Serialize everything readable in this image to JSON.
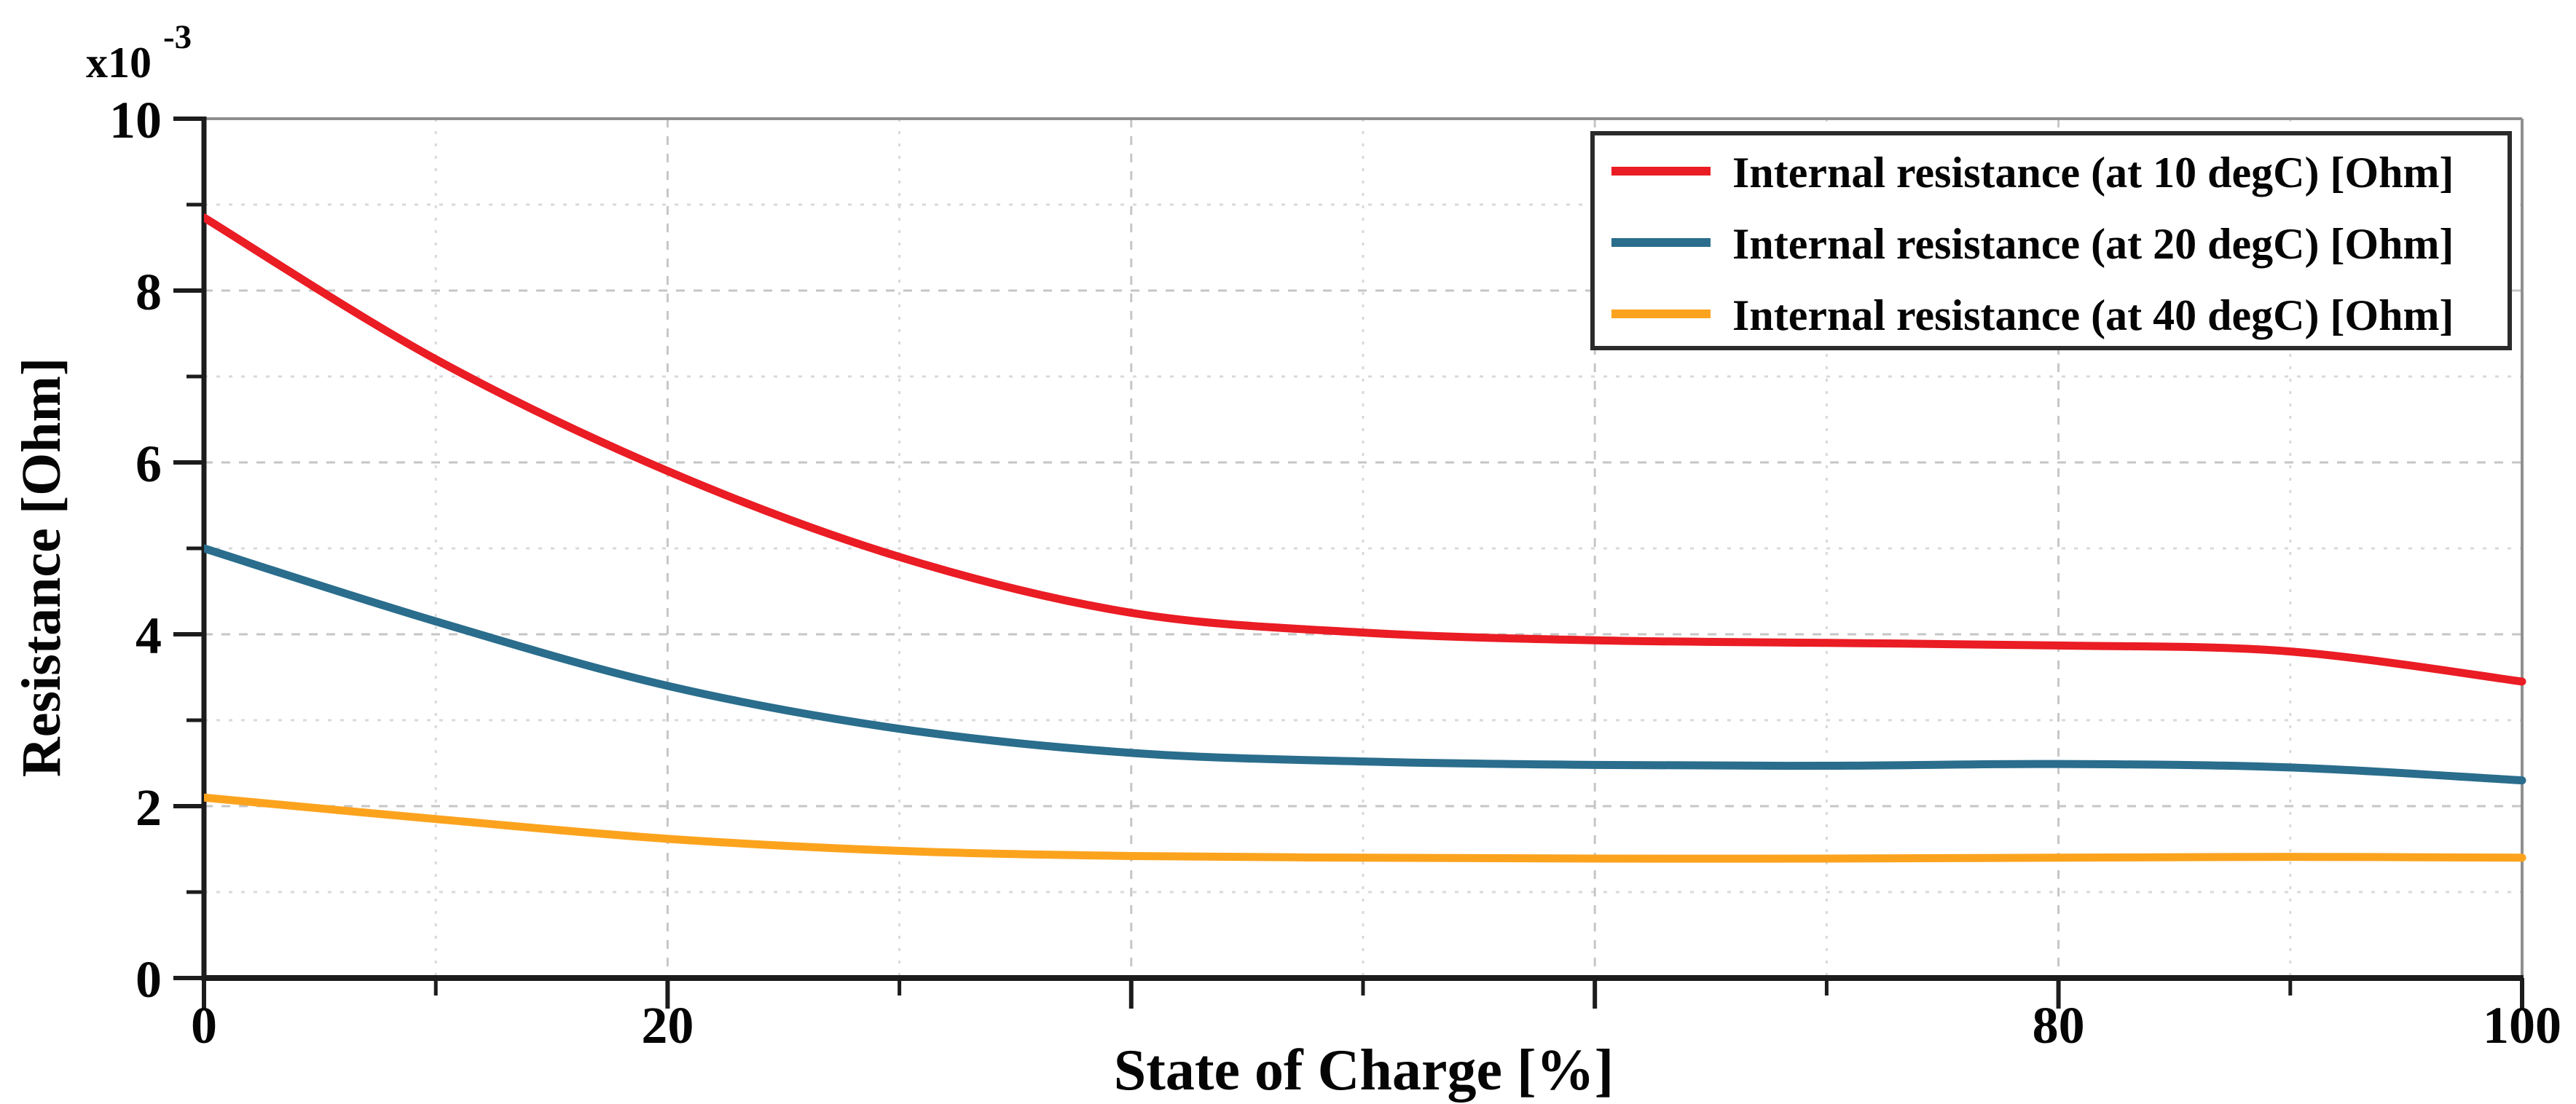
{
  "figure": {
    "y_multiplier_base": "x10",
    "y_multiplier_exponent": "-3"
  },
  "chart_data": {
    "type": "line",
    "title": "",
    "xlabel": "State of Charge [%]",
    "ylabel": "Resistance [Ohm]",
    "y_scale_note": "x10^-3",
    "xlim": [
      0,
      100
    ],
    "ylim": [
      0,
      10
    ],
    "grid": true,
    "legend_position": "top-right",
    "x_major_ticks": [
      0,
      20,
      40,
      60,
      80,
      100
    ],
    "x_minor_ticks": [
      10,
      30,
      50,
      70,
      90
    ],
    "x_tick_labels": [
      {
        "value": 0,
        "label": "0"
      },
      {
        "value": 20,
        "label": "20"
      },
      {
        "value": 80,
        "label": "80"
      },
      {
        "value": 100,
        "label": "100"
      }
    ],
    "y_major_ticks": [
      0,
      2,
      4,
      6,
      8,
      10
    ],
    "y_minor_ticks": [
      1,
      3,
      5,
      7,
      9
    ],
    "y_tick_labels": [
      {
        "value": 0,
        "label": "0"
      },
      {
        "value": 2,
        "label": "2"
      },
      {
        "value": 4,
        "label": "4"
      },
      {
        "value": 6,
        "label": "6"
      },
      {
        "value": 8,
        "label": "8"
      },
      {
        "value": 10,
        "label": "10"
      }
    ],
    "x": [
      0,
      10,
      20,
      30,
      40,
      50,
      60,
      70,
      80,
      90,
      100
    ],
    "series": [
      {
        "name": "Internal resistance (at 10 degC) [Ohm]",
        "color": "#EA1C24",
        "values": [
          8.85,
          7.2,
          5.9,
          4.9,
          4.25,
          4.02,
          3.93,
          3.9,
          3.87,
          3.8,
          3.45
        ]
      },
      {
        "name": "Internal resistance (at 20 degC) [Ohm]",
        "color": "#2A6D8C",
        "values": [
          5.0,
          4.15,
          3.4,
          2.9,
          2.62,
          2.52,
          2.48,
          2.47,
          2.49,
          2.45,
          2.3
        ]
      },
      {
        "name": "Internal resistance (at 40 degC) [Ohm]",
        "color": "#FCA31E",
        "values": [
          2.1,
          1.85,
          1.62,
          1.48,
          1.42,
          1.4,
          1.39,
          1.39,
          1.4,
          1.41,
          1.4
        ]
      }
    ]
  },
  "colors": {
    "axis_dark": "#1c1c1c",
    "border_gray": "#8f8f8f",
    "grid_major": "#c6c6c6",
    "grid_minor": "#d9d9d9",
    "legend_border": "#2b2b2b",
    "background": "#ffffff",
    "text": "#050505"
  }
}
